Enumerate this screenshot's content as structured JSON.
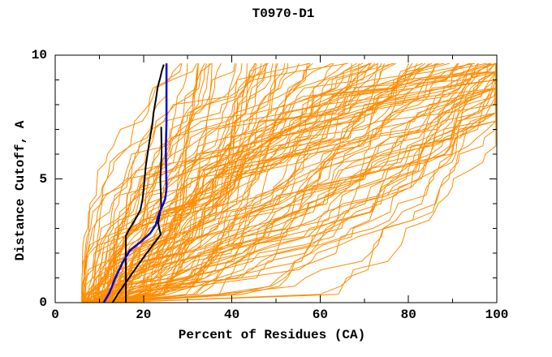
{
  "page": {
    "background": "#ffffff"
  },
  "chart": {
    "title": "T0970-D1",
    "xlabel": "Percent of Residues (CA)",
    "ylabel": "Distance Cutoff, A"
  },
  "chart_data": {
    "type": "line",
    "title": "T0970-D1",
    "xlabel": "Percent of Residues (CA)",
    "ylabel": "Distance Cutoff, A",
    "xlim": [
      0,
      100
    ],
    "ylim": [
      0,
      10
    ],
    "x_major_ticks": [
      0,
      20,
      40,
      60,
      80,
      100
    ],
    "x_minor_tick_step": 10,
    "y_major_ticks": [
      0,
      5,
      10
    ],
    "y_minor_tick_step": 1,
    "grid": false,
    "legend_position": "none",
    "tick_style": "inward-mirrored",
    "max_plotted_cutoff": 9.67,
    "colors": {
      "ensemble": "#ff8c00",
      "highlight_black": "#000000",
      "highlight_blue": "#0000dd",
      "axis": "#000000",
      "background": "#ffffff"
    },
    "highlighted_series": [
      {
        "name": "highlighted-model-black-1",
        "color": "#000000",
        "width": 2,
        "points": [
          [
            16,
            0
          ],
          [
            16,
            2.7
          ],
          [
            16.9,
            3.0
          ],
          [
            17.6,
            3.2
          ],
          [
            18.4,
            3.45
          ],
          [
            19.3,
            3.75
          ],
          [
            19.8,
            4.2
          ],
          [
            20.2,
            4.9
          ],
          [
            20.5,
            5.5
          ],
          [
            21.0,
            6.1
          ],
          [
            21.5,
            6.7
          ],
          [
            22.0,
            7.2
          ],
          [
            22.3,
            7.7
          ],
          [
            22.8,
            8.2
          ],
          [
            23.2,
            8.7
          ],
          [
            23.8,
            9.1
          ],
          [
            24.2,
            9.4
          ],
          [
            24.6,
            9.62
          ]
        ]
      },
      {
        "name": "highlighted-model-black-2",
        "color": "#000000",
        "width": 2,
        "points": [
          [
            13,
            0
          ],
          [
            14.2,
            0.35
          ],
          [
            17.5,
            1.2
          ],
          [
            20.5,
            1.95
          ],
          [
            23.9,
            2.75
          ],
          [
            23.3,
            3.2
          ],
          [
            24.0,
            3.9
          ],
          [
            23.8,
            5.0
          ],
          [
            24.1,
            6.0
          ],
          [
            24.0,
            7.1
          ]
        ]
      },
      {
        "name": "highlighted-model-blue",
        "color": "#0000dd",
        "width": 2.5,
        "points": [
          [
            11,
            0
          ],
          [
            12.3,
            0.4
          ],
          [
            13.5,
            0.95
          ],
          [
            15.2,
            1.6
          ],
          [
            16.9,
            2.1
          ],
          [
            19.3,
            2.45
          ],
          [
            21.5,
            2.8
          ],
          [
            22.8,
            3.15
          ],
          [
            23.5,
            3.6
          ],
          [
            24.4,
            3.95
          ],
          [
            24.9,
            4.2
          ],
          [
            25.2,
            4.6
          ],
          [
            25.05,
            6.2
          ],
          [
            25.2,
            7.3
          ],
          [
            25.2,
            9.67
          ]
        ]
      }
    ],
    "ensemble_series": {
      "name": "predicted-model-curves",
      "color": "#ff8c00",
      "width": 1,
      "count": 120,
      "seed": 970201,
      "steps": 29,
      "start_percent_range": [
        6,
        15
      ],
      "end_percent_range": [
        27,
        118
      ],
      "end_cutoff": 9.67
    }
  }
}
